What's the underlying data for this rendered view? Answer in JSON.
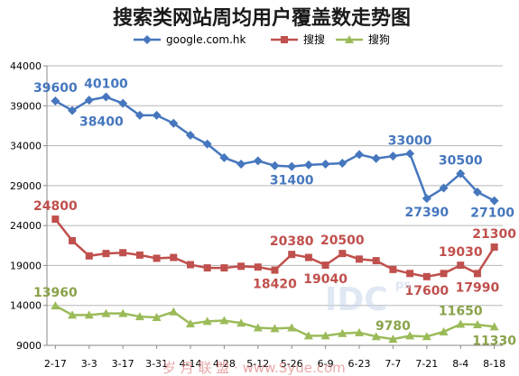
{
  "chart_data": {
    "type": "line",
    "title": "搜索类网站周均用户覆盖数走势图",
    "xlabel": "",
    "ylabel": "",
    "ylim": [
      9000,
      44000
    ],
    "yticks": [
      9000,
      14000,
      19000,
      24000,
      29000,
      34000,
      39000,
      44000
    ],
    "ytick_labels": [
      "9000",
      "14000",
      "19000",
      "24000",
      "29000",
      "34000",
      "39000",
      "44000"
    ],
    "x_tick_labels": [
      "2-17",
      "3-3",
      "3-17",
      "3-31",
      "4-14",
      "4-28",
      "5-12",
      "5-26",
      "6-9",
      "6-23",
      "7-7",
      "7-21",
      "8-4",
      "8-18"
    ],
    "legend_position": "top",
    "grid": true,
    "series": [
      {
        "name": "google.com.hk",
        "color": "#4677be",
        "marker": "diamond",
        "values": [
          39600,
          38400,
          39700,
          40100,
          39300,
          37800,
          37800,
          36800,
          35300,
          34200,
          32500,
          31700,
          32100,
          31500,
          31400,
          31600,
          31700,
          31800,
          32900,
          32400,
          32700,
          33000,
          27390,
          28700,
          30500,
          28200,
          27100
        ]
      },
      {
        "name": "搜搜",
        "color": "#c0504d",
        "marker": "square",
        "values": [
          24800,
          22100,
          20200,
          20500,
          20600,
          20300,
          19900,
          20000,
          19100,
          18700,
          18700,
          18900,
          18800,
          18420,
          20380,
          20000,
          19040,
          20500,
          19800,
          19600,
          18500,
          18000,
          17600,
          18000,
          19030,
          17990,
          21300
        ]
      },
      {
        "name": "搜狗",
        "color": "#9bbb59",
        "marker": "triangle",
        "values": [
          13960,
          12800,
          12800,
          13000,
          13000,
          12600,
          12500,
          13200,
          11700,
          12000,
          12100,
          11800,
          11200,
          11100,
          11200,
          10200,
          10200,
          10500,
          10600,
          10100,
          9780,
          10200,
          10100,
          10700,
          11650,
          11600,
          11330
        ]
      }
    ],
    "data_labels": [
      {
        "series": 0,
        "index": 0,
        "text": "39600",
        "pos": "above"
      },
      {
        "series": 0,
        "index": 1,
        "text": "38400",
        "pos": "right"
      },
      {
        "series": 0,
        "index": 3,
        "text": "40100",
        "pos": "above"
      },
      {
        "series": 0,
        "index": 14,
        "text": "31400",
        "pos": "below"
      },
      {
        "series": 0,
        "index": 21,
        "text": "33000",
        "pos": "above"
      },
      {
        "series": 0,
        "index": 22,
        "text": "27390",
        "pos": "below"
      },
      {
        "series": 0,
        "index": 24,
        "text": "30500",
        "pos": "above"
      },
      {
        "series": 0,
        "index": 26,
        "text": "27100",
        "pos": "left"
      },
      {
        "series": 1,
        "index": 0,
        "text": "24800",
        "pos": "above"
      },
      {
        "series": 1,
        "index": 14,
        "text": "20380",
        "pos": "above"
      },
      {
        "series": 1,
        "index": 13,
        "text": "18420",
        "pos": "below"
      },
      {
        "series": 1,
        "index": 17,
        "text": "20500",
        "pos": "above"
      },
      {
        "series": 1,
        "index": 16,
        "text": "19040",
        "pos": "below"
      },
      {
        "series": 1,
        "index": 22,
        "text": "17600",
        "pos": "below"
      },
      {
        "series": 1,
        "index": 24,
        "text": "19030",
        "pos": "above"
      },
      {
        "series": 1,
        "index": 25,
        "text": "17990",
        "pos": "below"
      },
      {
        "series": 1,
        "index": 26,
        "text": "21300",
        "pos": "above"
      },
      {
        "series": 2,
        "index": 0,
        "text": "13960",
        "pos": "above"
      },
      {
        "series": 2,
        "index": 20,
        "text": "9780",
        "pos": "above"
      },
      {
        "series": 2,
        "index": 24,
        "text": "11650",
        "pos": "above"
      },
      {
        "series": 2,
        "index": 26,
        "text": "11330",
        "pos": "below"
      }
    ]
  },
  "watermark": {
    "logo_text": "IDC",
    "logo_sub": "ps",
    "site_text": "岁 月 联 盟 · www.Syue.com"
  }
}
